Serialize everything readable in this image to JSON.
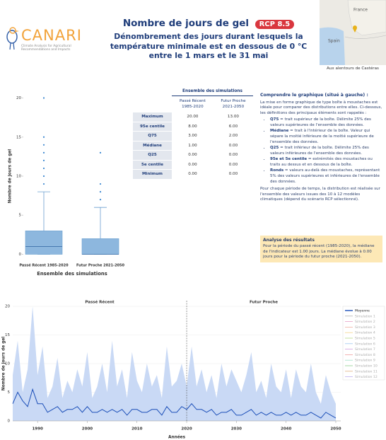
{
  "logo": {
    "name": "CANARI",
    "tagline": "Climate Analysis for Agricultural Recommendations and Impacts"
  },
  "header": {
    "title": "Nombre de jours de gel",
    "badge": "RCP 8.5",
    "subtitle_lines": [
      "Dénombrement des jours durant lesquels la",
      "température minimale est en dessous de 0 °C",
      "entre le 1 mars et le 31 mai"
    ]
  },
  "map": {
    "labels": [
      "France",
      "Spain"
    ],
    "caption": "Aux alentours de Castéras"
  },
  "table": {
    "title": "Ensemble des simulations",
    "columns": [
      [
        "Passé Récent",
        "1985-2020"
      ],
      [
        "Futur Proche",
        "2021-2050"
      ]
    ],
    "rows": [
      [
        "Maximum",
        "20.00",
        "13.00"
      ],
      [
        "95e centile",
        "8.00",
        "6.00"
      ],
      [
        "Q75",
        "3.00",
        "2.00"
      ],
      [
        "Médiane",
        "1.00",
        "0.00"
      ],
      [
        "Q25",
        "0.00",
        "0.00"
      ],
      [
        "5e centile",
        "0.00",
        "0.00"
      ],
      [
        "Minimum",
        "0.00",
        "0.00"
      ]
    ]
  },
  "explanation": {
    "title": "Comprendre le graphique (situé à gauche) :",
    "intro": "La mise en forme graphique de type boîte à moustaches est idéale pour comparer des distributions entre elles. Ci-dessous, les définitions des principaux éléments sont rappelés :",
    "items": [
      {
        "term": "Q75",
        "text": "= trait supérieur de la boîte. Délimite 25% des valeurs supérieures de l'ensemble des données."
      },
      {
        "term": "Médiane",
        "text": "= trait à l'intérieur de la boîte. Valeur qui sépare la moitié inférieure de la moitié supérieure de l'ensemble des données."
      },
      {
        "term": "Q25",
        "text": "= trait inférieur de la boîte. Délimite 25% des valeurs inférieures de l'ensemble des données."
      },
      {
        "term": "95e et 5e centile",
        "text": "= extrémités des moustaches ou traits au dessus et en dessous de la boîte."
      },
      {
        "term": "Ronds",
        "text": "= valeurs au-delà des moustaches, représentant 5% des valeurs supérieures et inférieures de l'ensemble des données."
      }
    ],
    "outro": "Pour chaque période de temps, la distribution est réalisée sur l'ensemble des valeurs issues des 10 à 12 modèles climatiques (dépend du scénario RCP sélectionné)."
  },
  "analysis": {
    "title": "Analyse des résultats",
    "text": "Pour la période du passé récent (1985-2020), la médiane de l'indicateur est 1.00 jours. La médiane évolue à 0.00 jours pour la période du futur proche (2021-2050)."
  },
  "chart_data": [
    {
      "type": "box",
      "x_label": "Ensemble des simulations",
      "y_label": "Nombre de jours de gel",
      "categories": [
        "Passé Récent 1985-2020",
        "Futur Proche 2021-2050"
      ],
      "color": "#8db7de",
      "boxes": [
        {
          "whislo": 0,
          "q1": 0,
          "med": 1,
          "q3": 3,
          "whishi": 8,
          "fliers": [
            9,
            10,
            11,
            12,
            13,
            14,
            15,
            20
          ]
        },
        {
          "whislo": 0,
          "q1": 0,
          "med": 0,
          "q3": 2,
          "whishi": 6,
          "fliers": [
            7,
            8,
            9,
            13
          ]
        }
      ],
      "ylim": [
        -0.5,
        20.5
      ],
      "yticks": [
        0,
        5,
        10,
        15,
        20
      ]
    },
    {
      "type": "line",
      "x_label": "Années",
      "y_label": "Nombre de jours de gel",
      "annotations": [
        "Passé Récent",
        "Futur Proche"
      ],
      "divider_x": 2020,
      "x": [
        1985,
        1986,
        1987,
        1988,
        1989,
        1990,
        1991,
        1992,
        1993,
        1994,
        1995,
        1996,
        1997,
        1998,
        1999,
        2000,
        2001,
        2002,
        2003,
        2004,
        2005,
        2006,
        2007,
        2008,
        2009,
        2010,
        2011,
        2012,
        2013,
        2014,
        2015,
        2016,
        2017,
        2018,
        2019,
        2020,
        2021,
        2022,
        2023,
        2024,
        2025,
        2026,
        2027,
        2028,
        2029,
        2030,
        2031,
        2032,
        2033,
        2034,
        2035,
        2036,
        2037,
        2038,
        2039,
        2040,
        2041,
        2042,
        2043,
        2044,
        2045,
        2046,
        2047,
        2048,
        2049,
        2050
      ],
      "band_color": "#c9d9f5",
      "band_upper": [
        8,
        14,
        5,
        9,
        20,
        8,
        13,
        4,
        6,
        11,
        4,
        7,
        5,
        9,
        6,
        12,
        4,
        6,
        10,
        5,
        14,
        6,
        9,
        4,
        12,
        7,
        5,
        10,
        6,
        8,
        4,
        13,
        6,
        7,
        10,
        6,
        13,
        6,
        9,
        5,
        8,
        4,
        10,
        6,
        9,
        7,
        5,
        8,
        12,
        5,
        7,
        4,
        10,
        6,
        5,
        9,
        4,
        9,
        6,
        5,
        10,
        5,
        3,
        8,
        5,
        3
      ],
      "series": [
        {
          "name": "Moyenne",
          "color": "#1c4fb8",
          "values": [
            3,
            5,
            3.5,
            2.5,
            5.5,
            3,
            3,
            1.5,
            2,
            2.5,
            1.5,
            2,
            2,
            2.5,
            1.5,
            2.5,
            1.5,
            1.5,
            2,
            1.5,
            2,
            1.5,
            2,
            1,
            2,
            2,
            1.5,
            1.5,
            2,
            2,
            1,
            2.5,
            1.5,
            1.5,
            2.5,
            2,
            3,
            2,
            2,
            1.5,
            2,
            1,
            1.5,
            1.5,
            2,
            1,
            1,
            1.5,
            2,
            1,
            1.5,
            1,
            1.5,
            1,
            1,
            1.5,
            1,
            1.5,
            1,
            1,
            1.5,
            1,
            0.5,
            1.5,
            1,
            0.5
          ]
        }
      ],
      "legend_only": [
        {
          "name": "Simulation 1",
          "color": "#b0b0b0"
        },
        {
          "name": "Simulation 2",
          "color": "#e8a0c8"
        },
        {
          "name": "Simulation 3",
          "color": "#f0b0a0"
        },
        {
          "name": "Simulation 4",
          "color": "#f5d58a"
        },
        {
          "name": "Simulation 5",
          "color": "#b8d98a"
        },
        {
          "name": "Simulation 6",
          "color": "#a0c8f0"
        },
        {
          "name": "Simulation 7",
          "color": "#d0a0e0"
        },
        {
          "name": "Simulation 8",
          "color": "#f0a0a0"
        },
        {
          "name": "Simulation 9",
          "color": "#a0e0c8"
        },
        {
          "name": "Simulation 10",
          "color": "#90d090"
        },
        {
          "name": "Simulation 11",
          "color": "#e0b080"
        },
        {
          "name": "Simulation 12",
          "color": "#c0b0f0"
        }
      ],
      "xlim": [
        1985,
        2051
      ],
      "xticks": [
        1990,
        2000,
        2010,
        2020,
        2030,
        2040,
        2050
      ],
      "ylim": [
        0,
        20
      ],
      "yticks": [
        0,
        5,
        10,
        15,
        20
      ],
      "grid": true
    }
  ]
}
